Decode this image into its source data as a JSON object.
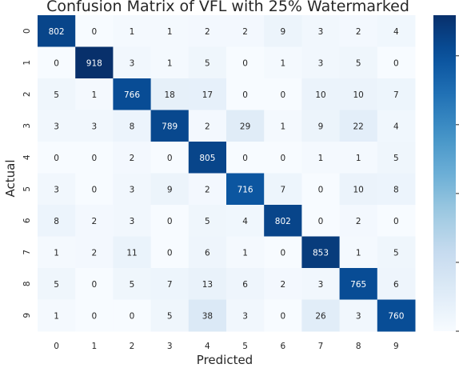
{
  "chart_data": {
    "type": "heatmap",
    "title": "Confusion Matrix of VFL with 25% Watermarked",
    "xlabel": "Predicted",
    "ylabel": "Actual",
    "x_categories": [
      "0",
      "1",
      "2",
      "3",
      "4",
      "5",
      "6",
      "7",
      "8",
      "9"
    ],
    "y_categories": [
      "0",
      "1",
      "2",
      "3",
      "4",
      "5",
      "6",
      "7",
      "8",
      "9"
    ],
    "values": [
      [
        802,
        0,
        1,
        1,
        2,
        2,
        9,
        3,
        2,
        4
      ],
      [
        0,
        918,
        3,
        1,
        5,
        0,
        1,
        3,
        5,
        0
      ],
      [
        5,
        1,
        766,
        18,
        17,
        0,
        0,
        10,
        10,
        7
      ],
      [
        3,
        3,
        8,
        789,
        2,
        29,
        1,
        9,
        22,
        4
      ],
      [
        0,
        0,
        2,
        0,
        805,
        0,
        0,
        1,
        1,
        5
      ],
      [
        3,
        0,
        3,
        9,
        2,
        716,
        7,
        0,
        10,
        8
      ],
      [
        8,
        2,
        3,
        0,
        5,
        4,
        802,
        0,
        2,
        0
      ],
      [
        1,
        2,
        11,
        0,
        6,
        1,
        0,
        853,
        1,
        5
      ],
      [
        5,
        0,
        5,
        7,
        13,
        6,
        2,
        3,
        765,
        6
      ],
      [
        1,
        0,
        0,
        5,
        38,
        3,
        0,
        26,
        3,
        760
      ]
    ],
    "colormap": "Blues",
    "color_low": "#f7fbff",
    "color_high": "#08306b",
    "colorbar": true,
    "colorbar_ticks_labeled": false,
    "grid": false
  }
}
